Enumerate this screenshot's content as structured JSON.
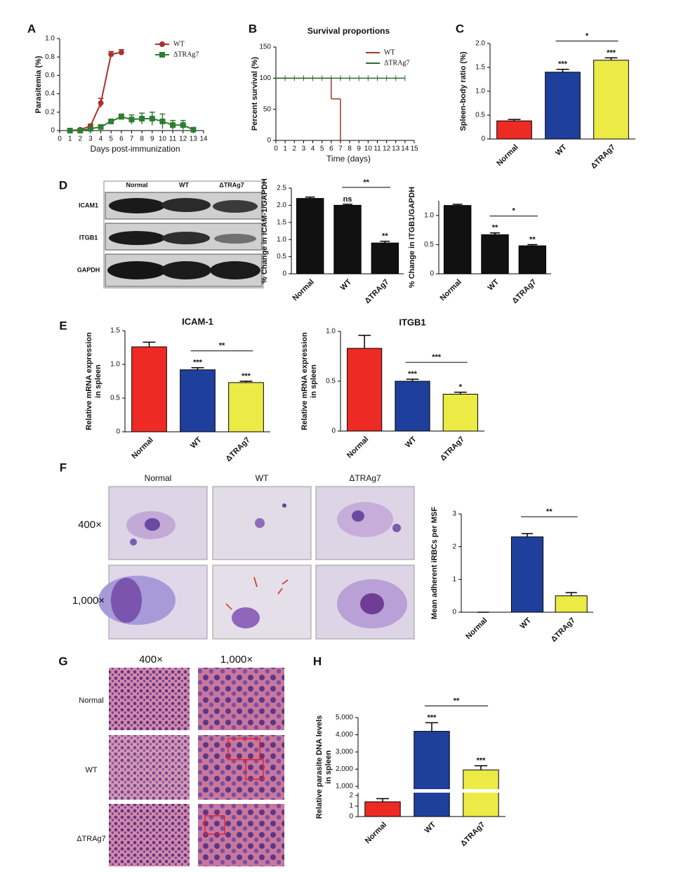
{
  "panel_labels": [
    "A",
    "B",
    "C",
    "D",
    "E",
    "F",
    "G",
    "H"
  ],
  "blot": {
    "lanes": [
      "Normal",
      "WT",
      "ΔTRAg7"
    ],
    "bands": [
      "ICAM1",
      "ITGB1",
      "GAPDH"
    ]
  },
  "micrographs": {
    "columns": [
      "Normal",
      "WT",
      "ΔTRAg7"
    ],
    "rows": [
      "400×",
      "1,000×"
    ]
  },
  "histology": {
    "columns": [
      "400×",
      "1,000×"
    ],
    "rows": [
      "Normal",
      "WT",
      "ΔTRAg7"
    ]
  },
  "chart_data": [
    {
      "type": "line",
      "ylabel": "Parasitemia (%)",
      "xlabel": "Days post-immunization",
      "x": [
        1,
        2,
        3,
        4,
        5,
        6,
        7,
        8,
        9,
        10,
        11,
        12,
        13
      ],
      "xlim": [
        0,
        14
      ],
      "xticks": [
        0,
        1,
        2,
        3,
        4,
        5,
        6,
        7,
        8,
        9,
        10,
        11,
        12,
        13,
        14
      ],
      "ylim": [
        0,
        1
      ],
      "yticks": [
        0,
        0.2,
        0.4,
        0.6,
        0.8,
        {
          "value": 1,
          "label": "1.0"
        }
      ],
      "legend": "upper right",
      "series": [
        {
          "name": "WT",
          "color": "#a8322e",
          "marker": "circle",
          "values": [
            0,
            0.01,
            0.05,
            0.3,
            0.83,
            0.85,
            null,
            null,
            null,
            null,
            null,
            null,
            null
          ],
          "errors": [
            0,
            0,
            0.02,
            0.05,
            0.03,
            0.03,
            null,
            null,
            null,
            null,
            null,
            null,
            null
          ]
        },
        {
          "name": "ΔTRAg7",
          "color": "#2e7d32",
          "marker": "square",
          "values": [
            0,
            0,
            0.02,
            0.04,
            0.1,
            0.15,
            0.12,
            0.13,
            0.13,
            0.1,
            0.06,
            0.06,
            0.01
          ],
          "errors": [
            0,
            0,
            0.01,
            0.01,
            0.01,
            0.03,
            0.05,
            0.06,
            0.07,
            0.08,
            0.05,
            0.05,
            0.01
          ]
        }
      ]
    },
    {
      "type": "step",
      "title": "Survival proportions",
      "ylabel": "Percent survival (%)",
      "xlabel": "Time (days)",
      "xlim": [
        0,
        15
      ],
      "xticks": [
        0,
        1,
        2,
        3,
        4,
        5,
        6,
        7,
        8,
        9,
        10,
        11,
        12,
        13,
        14,
        15
      ],
      "ylim": [
        0,
        150
      ],
      "yticks": [
        0,
        50,
        100,
        150
      ],
      "legend": "upper right",
      "series": [
        {
          "name": "WT",
          "color": "#9b3a2a",
          "x": [
            0,
            6,
            7
          ],
          "values": [
            100,
            66.7,
            0
          ]
        },
        {
          "name": "ΔTRAg7",
          "color": "#2e6b2e",
          "x": [
            0,
            14
          ],
          "values": [
            100,
            100
          ]
        }
      ]
    },
    {
      "type": "bar",
      "ylabel": "Spleen-body ratio (%)",
      "categories": [
        "Normal",
        "WT",
        "ΔTRAg7"
      ],
      "colors": [
        "#ee2a24",
        "#1f3f9c",
        "#ecea45"
      ],
      "values": [
        0.38,
        1.4,
        1.65
      ],
      "errors": [
        0.03,
        0.06,
        0.05
      ],
      "ylim": [
        0,
        2
      ],
      "yticks": [
        0,
        0.5,
        {
          "value": 1,
          "label": "1.0"
        },
        1.5,
        {
          "value": 2,
          "label": "2.0"
        }
      ],
      "significance": [
        null,
        "***",
        "***"
      ],
      "bracket": {
        "label": "*"
      }
    },
    {
      "type": "bar",
      "ylabel": "% Change in ICAM-1/GAPDH",
      "categories": [
        "Normal",
        "WT",
        "ΔTRAg7"
      ],
      "colors": [
        "#111111",
        "#111111",
        "#111111"
      ],
      "values": [
        2.2,
        2.0,
        0.9
      ],
      "errors": [
        0.04,
        0.03,
        0.05
      ],
      "ylim": [
        0,
        2.5
      ],
      "yticks": [
        0,
        0.5,
        {
          "value": 1,
          "label": "1.0"
        },
        1.5,
        {
          "value": 2,
          "label": "2.0"
        },
        2.5
      ],
      "significance": [
        null,
        "ns",
        "**"
      ],
      "bracket": {
        "label": "**"
      }
    },
    {
      "type": "bar",
      "ylabel": "% Change in ITGB1/GAPDH",
      "categories": [
        "Normal",
        "WT",
        "ΔTRAg7"
      ],
      "colors": [
        "#111111",
        "#111111",
        "#111111"
      ],
      "values": [
        1.17,
        0.67,
        0.48
      ],
      "errors": [
        0.02,
        0.03,
        0.02
      ],
      "ylim": [
        0,
        1.25
      ],
      "yticks": [
        0,
        0.5,
        {
          "value": 1,
          "label": "1.0"
        }
      ],
      "significance": [
        null,
        "**",
        "**"
      ],
      "bracket": {
        "label": "*"
      }
    },
    {
      "type": "bar",
      "title": "ICAM-1",
      "ylabel": [
        "Relative mRNA expression",
        "in spleen"
      ],
      "categories": [
        "Normal",
        "WT",
        "ΔTRAg7"
      ],
      "colors": [
        "#ee2a24",
        "#1f3f9c",
        "#ecea45"
      ],
      "values": [
        1.26,
        0.92,
        0.73
      ],
      "errors": [
        0.07,
        0.03,
        0.02
      ],
      "ylim": [
        0,
        1.5
      ],
      "yticks": [
        0,
        0.5,
        {
          "value": 1,
          "label": "1.0"
        },
        1.5
      ],
      "significance": [
        null,
        "***",
        "***"
      ],
      "bracket": {
        "label": "**"
      }
    },
    {
      "type": "bar",
      "title": "ITGB1",
      "ylabel": [
        "Relative mRNA expression",
        "in spleen"
      ],
      "categories": [
        "Normal",
        "WT",
        "ΔTRAg7"
      ],
      "colors": [
        "#ee2a24",
        "#1f3f9c",
        "#ecea45"
      ],
      "values": [
        0.83,
        0.5,
        0.37
      ],
      "errors": [
        0.13,
        0.02,
        0.02
      ],
      "ylim": [
        0,
        1
      ],
      "yticks": [
        0,
        0.5,
        {
          "value": 1,
          "label": "1.0"
        }
      ],
      "significance": [
        null,
        "***",
        "*"
      ],
      "bracket": {
        "label": "***"
      }
    },
    {
      "type": "bar",
      "ylabel": "Mean adherent iRBCs per MSF",
      "categories": [
        "Normal",
        "WT",
        "ΔTRAg7"
      ],
      "colors": [
        "#ee2a24",
        "#1f3f9c",
        "#ecea45"
      ],
      "values": [
        0,
        2.3,
        0.5
      ],
      "errors": [
        0,
        0.1,
        0.1
      ],
      "ylim": [
        0,
        3
      ],
      "yticks": [
        0,
        1,
        2,
        3
      ],
      "bracket": {
        "label": "**"
      }
    },
    {
      "type": "bar",
      "ylabel": [
        "Relative parasite DNA levels",
        "in spleen"
      ],
      "categories": [
        "Normal",
        "WT",
        "ΔTRAg7"
      ],
      "colors": [
        "#ee2a24",
        "#1f3f9c",
        "#ecea45"
      ],
      "values": [
        1.4,
        4200,
        1950
      ],
      "errors": [
        0.3,
        500,
        250
      ],
      "ylim": [
        0,
        5000
      ],
      "axis_break": [
        2,
        1000
      ],
      "yticks": [
        0,
        1,
        2,
        {
          "value": 1000,
          "label": "1,000"
        },
        {
          "value": 2000,
          "label": "2,000"
        },
        {
          "value": 3000,
          "label": "3,000"
        },
        {
          "value": 4000,
          "label": "4,000"
        },
        {
          "value": 5000,
          "label": "5,000"
        }
      ],
      "significance": [
        null,
        "***",
        "***"
      ],
      "bracket": {
        "label": "**"
      }
    }
  ]
}
